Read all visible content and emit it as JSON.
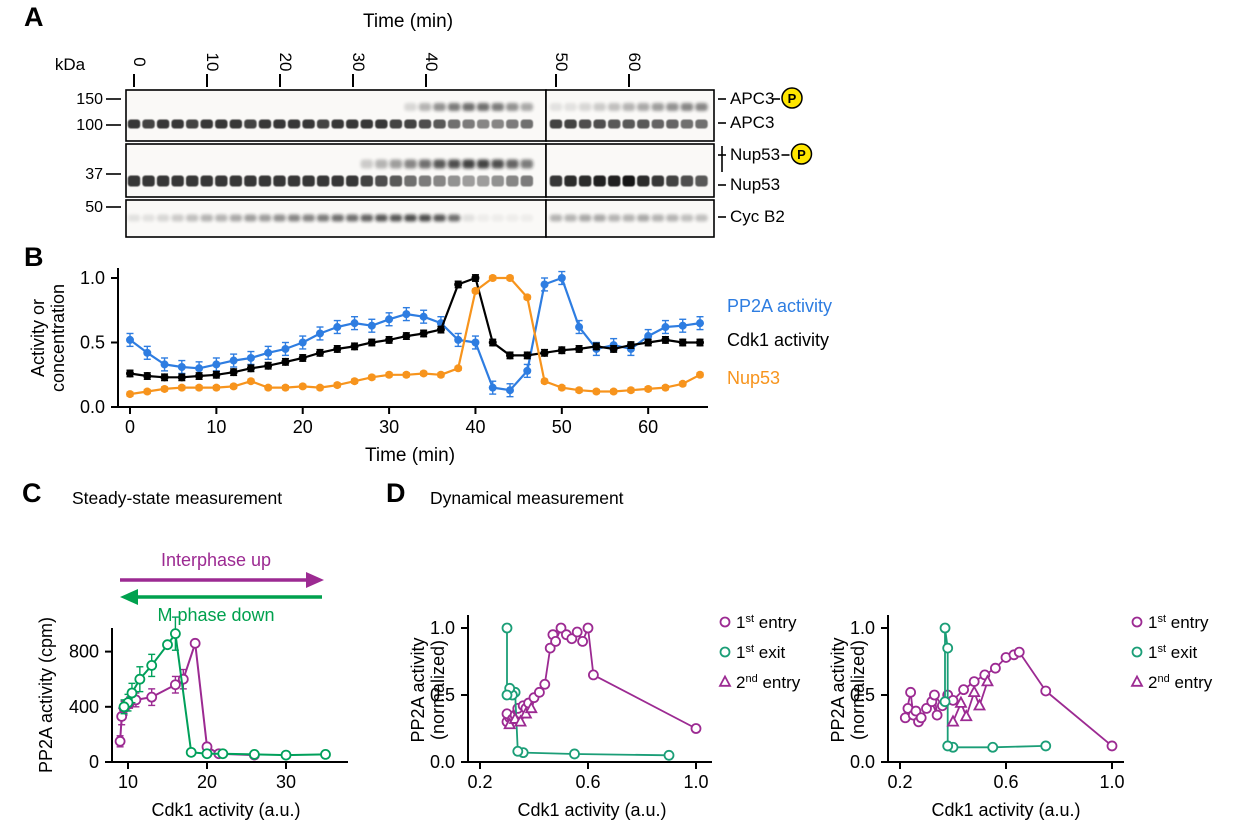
{
  "panels": {
    "a": "A",
    "b": "B",
    "c": "C",
    "d": "D"
  },
  "colors": {
    "pp2a_blue": "#2e7de1",
    "cdk1_black": "#000000",
    "nup53_orange": "#f7941d",
    "interphase_purple": "#9c2a92",
    "mphase_green": "#00a14e",
    "series_green_c": "#00a05a",
    "series_green_d": "#1b9e77",
    "phospho_yellow": "#ffe600"
  },
  "panelA": {
    "time_axis_label": "Time (min)",
    "time_ticks": [
      "0",
      "10",
      "20",
      "30",
      "40",
      "50",
      "60"
    ],
    "kda_label": "kDa",
    "kda_marks": [
      "150",
      "100",
      "37",
      "50"
    ],
    "phospho_symbol": "P",
    "band_labels": [
      {
        "text": "APC3",
        "phospho": true
      },
      {
        "text": "APC3",
        "phospho": false
      },
      {
        "text": "Nup53",
        "phospho": true
      },
      {
        "text": "Nup53",
        "phospho": false
      },
      {
        "text": "Cyc B2",
        "phospho": false
      }
    ],
    "strips": {
      "apc3_main": [
        0.85,
        0.8,
        0.85,
        0.85,
        0.8,
        0.85,
        0.85,
        0.85,
        0.8,
        0.85,
        0.85,
        0.85,
        0.85,
        0.8,
        0.85,
        0.85,
        0.85,
        0.85,
        0.8,
        0.8,
        0.75,
        0.7,
        0.6,
        0.55,
        0.5,
        0.5,
        0.55,
        0.6,
        0.8,
        0.8,
        0.75,
        0.75,
        0.7,
        0.7,
        0.7,
        0.65,
        0.65,
        0.6,
        0.6
      ],
      "apc3_shift": [
        0,
        0,
        0,
        0,
        0,
        0,
        0,
        0,
        0,
        0,
        0,
        0,
        0,
        0,
        0,
        0,
        0,
        0,
        0,
        0.15,
        0.3,
        0.45,
        0.55,
        0.6,
        0.6,
        0.55,
        0.45,
        0.35,
        0.1,
        0.1,
        0.15,
        0.2,
        0.25,
        0.3,
        0.35,
        0.4,
        0.45,
        0.5,
        0.5
      ],
      "nup53_main": [
        0.85,
        0.85,
        0.85,
        0.85,
        0.85,
        0.85,
        0.85,
        0.85,
        0.85,
        0.85,
        0.85,
        0.85,
        0.85,
        0.85,
        0.85,
        0.85,
        0.8,
        0.75,
        0.7,
        0.6,
        0.55,
        0.5,
        0.45,
        0.4,
        0.4,
        0.45,
        0.5,
        0.55,
        0.85,
        0.9,
        0.9,
        0.95,
        0.95,
        1.0,
        0.9,
        0.85,
        0.8,
        0.75,
        0.7
      ],
      "nup53_shift": [
        0,
        0,
        0,
        0,
        0,
        0,
        0,
        0,
        0,
        0,
        0,
        0,
        0,
        0,
        0,
        0,
        0.2,
        0.3,
        0.4,
        0.5,
        0.6,
        0.7,
        0.75,
        0.8,
        0.8,
        0.75,
        0.65,
        0.55,
        0,
        0,
        0,
        0,
        0,
        0,
        0,
        0,
        0,
        0,
        0
      ],
      "cycb2": [
        0.1,
        0.1,
        0.15,
        0.2,
        0.25,
        0.3,
        0.3,
        0.35,
        0.4,
        0.4,
        0.45,
        0.5,
        0.5,
        0.55,
        0.6,
        0.6,
        0.65,
        0.7,
        0.7,
        0.75,
        0.75,
        0.7,
        0.6,
        0.1,
        0.05,
        0.05,
        0.05,
        0.05,
        0.3,
        0.3,
        0.35,
        0.35,
        0.3,
        0.3,
        0.35,
        0.3,
        0.3,
        0.25,
        0.25
      ]
    }
  },
  "chart_data": [
    {
      "id": "panelB",
      "type": "line",
      "title": "",
      "xlabel": "Time (min)",
      "ylabel_lines": [
        "Activity or",
        "concentration"
      ],
      "xlim": [
        0,
        66
      ],
      "ylim": [
        0,
        1.0
      ],
      "xticks": [
        0,
        10,
        20,
        30,
        40,
        50,
        60
      ],
      "xtick_labels": [
        "0",
        "10",
        "20",
        "30",
        "40",
        "50",
        "60"
      ],
      "yticks": [
        0,
        0.5,
        1.0
      ],
      "ytick_labels": [
        "0.0",
        "0.5",
        "1.0"
      ],
      "x": [
        0,
        2,
        4,
        6,
        8,
        10,
        12,
        14,
        16,
        18,
        20,
        22,
        24,
        26,
        28,
        30,
        32,
        34,
        36,
        38,
        40,
        42,
        44,
        46,
        48,
        50,
        52,
        54,
        56,
        58,
        60,
        62,
        64,
        66
      ],
      "series": [
        {
          "name": "PP2A activity",
          "color": "#2e7de1",
          "yerr": 0.05,
          "values": [
            0.52,
            0.42,
            0.33,
            0.31,
            0.3,
            0.33,
            0.36,
            0.38,
            0.42,
            0.45,
            0.5,
            0.57,
            0.62,
            0.65,
            0.63,
            0.68,
            0.72,
            0.7,
            0.65,
            0.52,
            0.5,
            0.15,
            0.13,
            0.28,
            0.95,
            1.0,
            0.62,
            0.45,
            0.48,
            0.45,
            0.55,
            0.62,
            0.63,
            0.65
          ]
        },
        {
          "name": "Cdk1 activity",
          "color": "#000000",
          "yerr": 0.025,
          "values": [
            0.26,
            0.24,
            0.23,
            0.23,
            0.24,
            0.25,
            0.27,
            0.3,
            0.32,
            0.35,
            0.38,
            0.42,
            0.45,
            0.47,
            0.5,
            0.52,
            0.55,
            0.57,
            0.6,
            0.95,
            1.0,
            0.5,
            0.4,
            0.4,
            0.42,
            0.44,
            0.45,
            0.47,
            0.45,
            0.48,
            0.5,
            0.52,
            0.5,
            0.5
          ]
        },
        {
          "name": "Nup53",
          "color": "#f7941d",
          "yerr": 0.015,
          "values": [
            0.1,
            0.12,
            0.14,
            0.15,
            0.15,
            0.15,
            0.16,
            0.2,
            0.15,
            0.15,
            0.16,
            0.15,
            0.17,
            0.2,
            0.23,
            0.25,
            0.25,
            0.26,
            0.25,
            0.3,
            0.9,
            1.0,
            1.0,
            0.85,
            0.2,
            0.15,
            0.13,
            0.12,
            0.12,
            0.13,
            0.14,
            0.15,
            0.18,
            0.25
          ]
        }
      ]
    },
    {
      "id": "panelC",
      "type": "scatter-line",
      "title": "Steady-state measurement",
      "xlabel": "Cdk1 activity (a.u.)",
      "ylabel": "PP2A activity (cpm)",
      "xlim": [
        8,
        36
      ],
      "ylim": [
        0,
        950
      ],
      "xticks": [
        10,
        20,
        30
      ],
      "xtick_labels": [
        "10",
        "20",
        "30"
      ],
      "yticks": [
        0,
        400,
        800
      ],
      "ytick_labels": [
        "0",
        "400",
        "800"
      ],
      "annotations": [
        {
          "text": "Interphase up",
          "direction": "right",
          "color": "#9c2a92"
        },
        {
          "text": "M phase down",
          "direction": "left",
          "color": "#00a14e"
        }
      ],
      "series": [
        {
          "name": "Interphase up",
          "color": "#9c2a92",
          "marker": "circle-open",
          "x": [
            9,
            9.2,
            9.5,
            9.8,
            10.2,
            11,
            13,
            16,
            17,
            18.5,
            20,
            21.5,
            26
          ],
          "y": [
            150,
            330,
            390,
            410,
            430,
            450,
            470,
            560,
            600,
            860,
            110,
            60,
            50
          ],
          "yerr": [
            40,
            60,
            50,
            40,
            40,
            50,
            60,
            60,
            70,
            0,
            0,
            0,
            0
          ]
        },
        {
          "name": "M phase down",
          "color": "#00a05a",
          "marker": "circle-open",
          "x": [
            35,
            30,
            26,
            22,
            20,
            18,
            16,
            15,
            13,
            11.5,
            10.5,
            10,
            9.5
          ],
          "y": [
            55,
            50,
            55,
            60,
            60,
            70,
            930,
            850,
            700,
            600,
            500,
            430,
            400
          ],
          "yerr": [
            0,
            0,
            0,
            0,
            0,
            0,
            120,
            0,
            80,
            90,
            70,
            60,
            50
          ]
        }
      ]
    },
    {
      "id": "panelD-left",
      "type": "scatter-line",
      "title": "Dynamical measurement",
      "xlabel": "Cdk1 activity (a.u.)",
      "ylabel_lines": [
        "PP2A activity",
        "(normalized)"
      ],
      "xlim": [
        0.2,
        1.0
      ],
      "ylim": [
        0,
        1.0
      ],
      "xticks": [
        0.2,
        0.6,
        1.0
      ],
      "xtick_labels": [
        "0.2",
        "0.6",
        "1.0"
      ],
      "yticks": [
        0,
        0.5,
        1.0
      ],
      "ytick_labels": [
        "0.0",
        "0.5",
        "1.0"
      ],
      "series": [
        {
          "name": "1st entry",
          "name_parts": {
            "num": "1",
            "ord": "st",
            "rest": " entry"
          },
          "color": "#9c2a92",
          "marker": "circle-open",
          "x": [
            0.3,
            0.31,
            0.3,
            0.32,
            0.33,
            0.34,
            0.35,
            0.34,
            0.36,
            0.37,
            0.38,
            0.4,
            0.42,
            0.44,
            0.46,
            0.47,
            0.48,
            0.5,
            0.52,
            0.54,
            0.56,
            0.58,
            0.6,
            0.62,
            1.0
          ],
          "y": [
            0.3,
            0.33,
            0.36,
            0.32,
            0.35,
            0.38,
            0.36,
            0.4,
            0.42,
            0.4,
            0.44,
            0.48,
            0.52,
            0.58,
            0.85,
            0.95,
            0.9,
            1.0,
            0.95,
            0.92,
            0.97,
            0.9,
            1.0,
            0.65,
            0.25
          ]
        },
        {
          "name": "1st exit",
          "name_parts": {
            "num": "1",
            "ord": "st",
            "rest": " exit"
          },
          "color": "#1b9e77",
          "marker": "circle-open",
          "x": [
            0.9,
            0.55,
            0.36,
            0.34,
            0.33,
            0.32,
            0.31,
            0.3,
            0.3
          ],
          "y": [
            0.05,
            0.06,
            0.07,
            0.08,
            0.52,
            0.5,
            0.55,
            0.5,
            1.0
          ]
        },
        {
          "name": "2nd entry",
          "name_parts": {
            "num": "2",
            "ord": "nd",
            "rest": " entry"
          },
          "color": "#9c2a92",
          "marker": "triangle-open",
          "x": [
            0.31,
            0.33,
            0.35,
            0.37,
            0.39
          ],
          "y": [
            0.28,
            0.32,
            0.3,
            0.36,
            0.4
          ]
        }
      ]
    },
    {
      "id": "panelD-right",
      "type": "scatter-line",
      "title": "",
      "xlabel": "Cdk1 activity (a.u.)",
      "ylabel_lines": [
        "PP2A activity",
        "(normalized)"
      ],
      "xlim": [
        0.2,
        1.0
      ],
      "ylim": [
        0,
        1.0
      ],
      "xticks": [
        0.2,
        0.6,
        1.0
      ],
      "xtick_labels": [
        "0.2",
        "0.6",
        "1.0"
      ],
      "yticks": [
        0,
        0.5,
        1.0
      ],
      "ytick_labels": [
        "0.0",
        "0.5",
        "1.0"
      ],
      "series": [
        {
          "name": "1st entry",
          "name_parts": {
            "num": "1",
            "ord": "st",
            "rest": " entry"
          },
          "color": "#9c2a92",
          "marker": "circle-open",
          "x": [
            0.23,
            0.22,
            0.24,
            0.25,
            0.27,
            0.26,
            0.28,
            0.3,
            0.32,
            0.34,
            0.33,
            0.36,
            0.38,
            0.4,
            0.44,
            0.48,
            0.52,
            0.56,
            0.6,
            0.63,
            0.65,
            0.75,
            1.0
          ],
          "y": [
            0.4,
            0.33,
            0.52,
            0.35,
            0.3,
            0.38,
            0.33,
            0.4,
            0.45,
            0.35,
            0.5,
            0.42,
            0.5,
            0.46,
            0.54,
            0.6,
            0.65,
            0.7,
            0.78,
            0.8,
            0.82,
            0.53,
            0.12
          ]
        },
        {
          "name": "1st exit",
          "name_parts": {
            "num": "1",
            "ord": "st",
            "rest": " exit"
          },
          "color": "#1b9e77",
          "marker": "circle-open",
          "x": [
            0.75,
            0.55,
            0.4,
            0.38,
            0.38,
            0.37,
            0.37
          ],
          "y": [
            0.12,
            0.11,
            0.11,
            0.12,
            0.85,
            1.0,
            0.45
          ]
        },
        {
          "name": "2nd entry",
          "name_parts": {
            "num": "2",
            "ord": "nd",
            "rest": " entry"
          },
          "color": "#9c2a92",
          "marker": "triangle-open",
          "x": [
            0.4,
            0.43,
            0.45,
            0.48,
            0.5,
            0.53
          ],
          "y": [
            0.3,
            0.44,
            0.34,
            0.52,
            0.42,
            0.6
          ]
        }
      ]
    }
  ]
}
